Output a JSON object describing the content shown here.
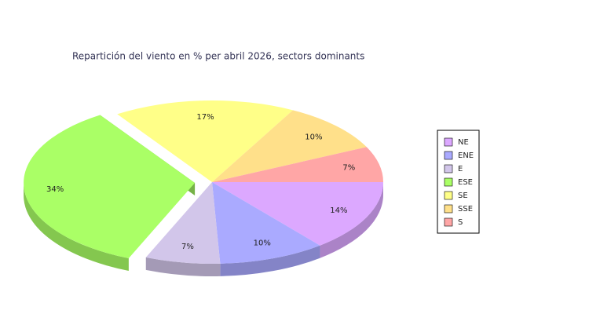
{
  "chart_data": {
    "type": "pie",
    "title": "Repartición del viento en % per abril 2026, sectors dominants",
    "categories": [
      "NE",
      "ENE",
      "E",
      "ESE",
      "SE",
      "SSE",
      "S"
    ],
    "values": [
      14,
      10,
      7,
      34,
      17,
      10,
      7
    ],
    "value_labels": [
      "14%",
      "10%",
      "7%",
      "34%",
      "17%",
      "10%",
      "7%"
    ],
    "colors": [
      "#dca8ff",
      "#aaaaff",
      "#d2c6ea",
      "#aaff66",
      "#ffff88",
      "#ffe08a",
      "#ffa6a6"
    ],
    "exploded": "ESE",
    "legend": "right"
  }
}
